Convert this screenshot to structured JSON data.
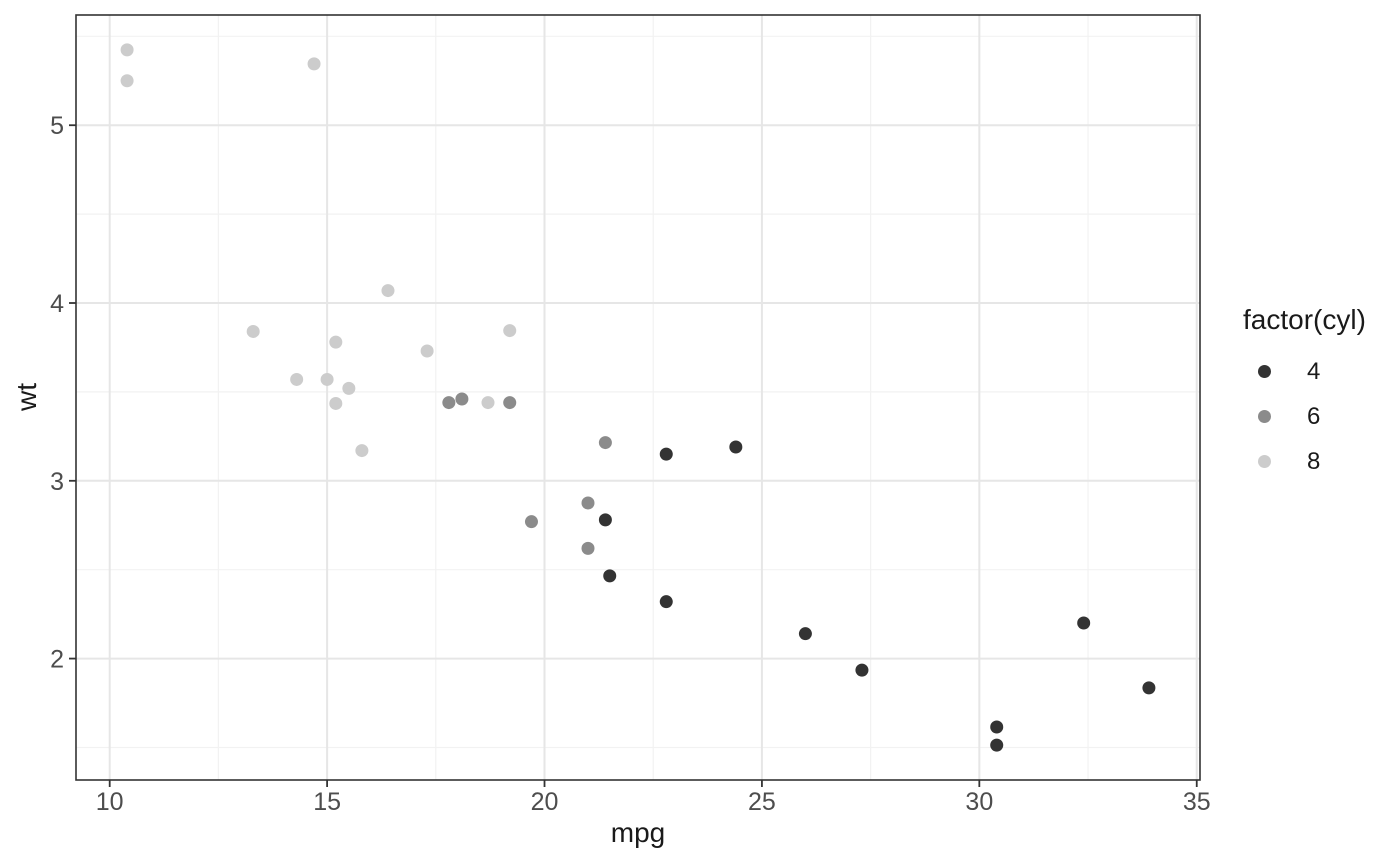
{
  "chart_data": {
    "type": "scatter",
    "title": "",
    "xlabel": "mpg",
    "ylabel": "wt",
    "xlim": [
      9.225,
      35.075
    ],
    "ylim": [
      1.317,
      5.62
    ],
    "x_major_ticks": [
      10,
      15,
      20,
      25,
      30,
      35
    ],
    "x_minor_ticks": [
      12.5,
      17.5,
      22.5,
      27.5,
      32.5
    ],
    "y_major_ticks": [
      2,
      3,
      4,
      5
    ],
    "y_minor_ticks": [
      1.5,
      2.5,
      3.5,
      4.5,
      5.5
    ],
    "grid": "on",
    "point_radius": 6.5,
    "legend": {
      "title": "factor(cyl)",
      "position": "right",
      "entries": [
        {
          "label": "4",
          "color": "#333333"
        },
        {
          "label": "6",
          "color": "#8b8b8b"
        },
        {
          "label": "8",
          "color": "#cccccc"
        }
      ]
    },
    "series": [
      {
        "name": "4",
        "color": "#333333",
        "points": [
          [
            22.8,
            2.32
          ],
          [
            24.4,
            3.19
          ],
          [
            22.8,
            3.15
          ],
          [
            32.4,
            2.2
          ],
          [
            30.4,
            1.615
          ],
          [
            33.9,
            1.835
          ],
          [
            21.5,
            2.465
          ],
          [
            27.3,
            1.935
          ],
          [
            26.0,
            2.14
          ],
          [
            30.4,
            1.513
          ],
          [
            21.4,
            2.78
          ]
        ]
      },
      {
        "name": "6",
        "color": "#8b8b8b",
        "points": [
          [
            21.0,
            2.62
          ],
          [
            21.0,
            2.875
          ],
          [
            21.4,
            3.215
          ],
          [
            18.1,
            3.46
          ],
          [
            19.2,
            3.44
          ],
          [
            17.8,
            3.44
          ],
          [
            19.7,
            2.77
          ]
        ]
      },
      {
        "name": "8",
        "color": "#cccccc",
        "points": [
          [
            18.7,
            3.44
          ],
          [
            14.3,
            3.57
          ],
          [
            16.4,
            4.07
          ],
          [
            17.3,
            3.73
          ],
          [
            15.2,
            3.78
          ],
          [
            10.4,
            5.25
          ],
          [
            10.4,
            5.424
          ],
          [
            14.7,
            5.345
          ],
          [
            15.5,
            3.52
          ],
          [
            15.2,
            3.435
          ],
          [
            13.3,
            3.84
          ],
          [
            19.2,
            3.845
          ],
          [
            15.8,
            3.17
          ],
          [
            15.0,
            3.57
          ]
        ]
      }
    ],
    "colors": {
      "background": "#ffffff",
      "panel_border": "#333333",
      "grid_major": "#e6e6e6",
      "grid_minor": "#f2f2f2",
      "tick_mark": "#333333",
      "tick_label": "#4d4d4d",
      "axis_title": "#1a1a1a"
    }
  }
}
